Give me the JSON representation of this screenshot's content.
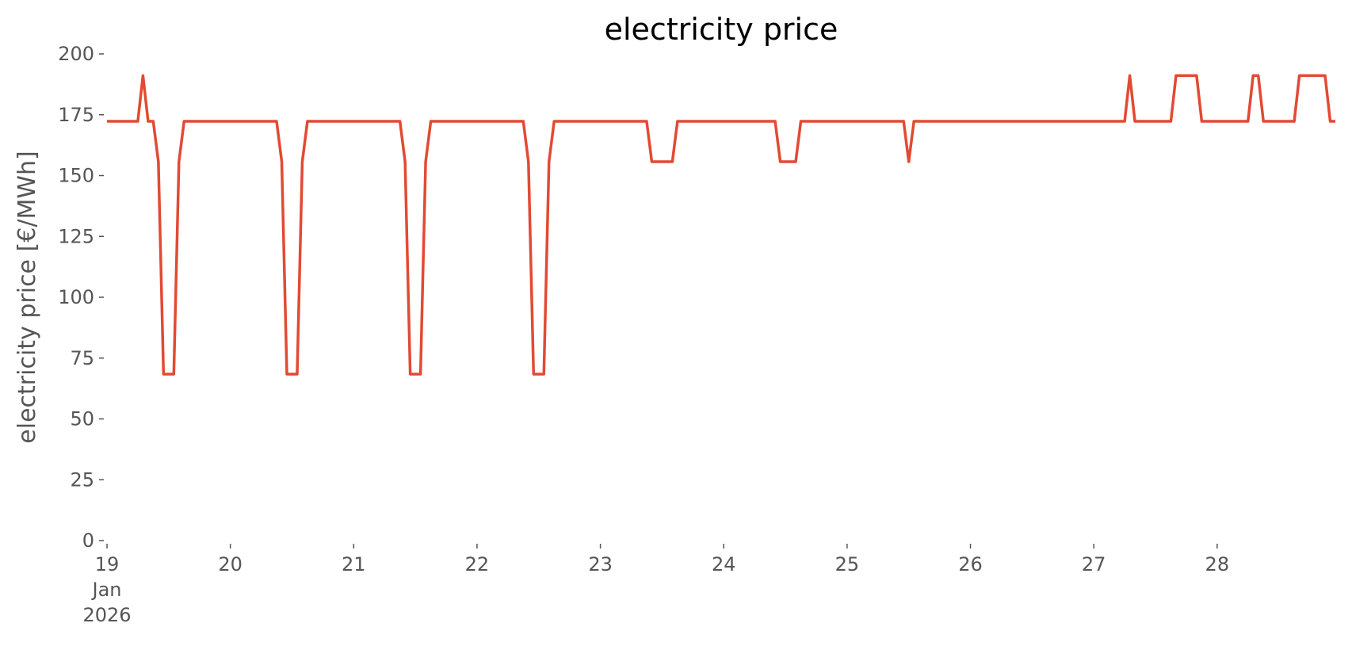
{
  "chart_data": {
    "type": "line",
    "title": "electricity price",
    "y_label": "electricity price [€/MWh]",
    "x": [
      0,
      6,
      7,
      8,
      9,
      10,
      11,
      13,
      14,
      15,
      33,
      34,
      35,
      37,
      38,
      39,
      57,
      58,
      59,
      61,
      62,
      63,
      81,
      82,
      83,
      85,
      86,
      87,
      105,
      106,
      110,
      111,
      130,
      131,
      134,
      135,
      155,
      156,
      157,
      198,
      199,
      200,
      207,
      208,
      212,
      213,
      222,
      223,
      224,
      225,
      231,
      232,
      237,
      238,
      239
    ],
    "series": [
      {
        "name": "electricity price",
        "color": "#e24a33",
        "values": [
          172.3,
          172.3,
          191.1,
          172.3,
          172.3,
          155.7,
          68.4,
          68.4,
          155.7,
          172.3,
          172.3,
          155.7,
          68.4,
          68.4,
          155.7,
          172.3,
          172.3,
          155.7,
          68.4,
          68.4,
          155.7,
          172.3,
          172.3,
          155.7,
          68.4,
          68.4,
          155.7,
          172.3,
          172.3,
          155.7,
          155.7,
          172.3,
          172.3,
          155.7,
          155.7,
          172.3,
          172.3,
          155.7,
          172.3,
          172.3,
          191.1,
          172.3,
          172.3,
          191.1,
          191.1,
          172.3,
          172.3,
          191.1,
          191.1,
          172.3,
          172.3,
          191.1,
          191.1,
          172.3,
          172.3
        ]
      }
    ],
    "xlim": [
      0,
      239
    ],
    "xticks": [
      {
        "value": 0,
        "label": "19\nJan\n2026"
      },
      {
        "value": 24,
        "label": "20"
      },
      {
        "value": 48,
        "label": "21"
      },
      {
        "value": 72,
        "label": "22"
      },
      {
        "value": 96,
        "label": "23"
      },
      {
        "value": 120,
        "label": "24"
      },
      {
        "value": 144,
        "label": "25"
      },
      {
        "value": 168,
        "label": "26"
      },
      {
        "value": 192,
        "label": "27"
      },
      {
        "value": 216,
        "label": "28"
      }
    ],
    "ylim": [
      0,
      200
    ],
    "yticks": [
      0,
      25,
      50,
      75,
      100,
      125,
      150,
      175,
      200
    ],
    "grid": false
  }
}
